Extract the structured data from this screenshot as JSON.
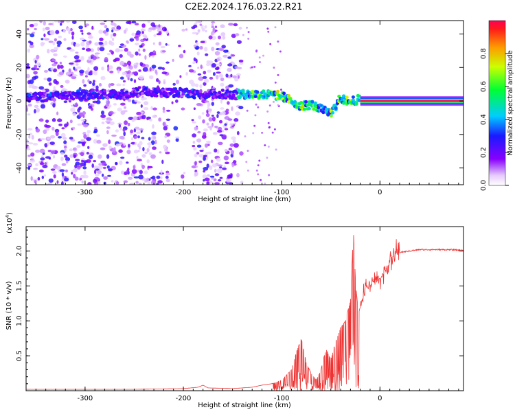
{
  "title": "C2E2.2024.176.03.22.R21",
  "chart_data": [
    {
      "type": "heatmap",
      "title": "C2E2.2024.176.03.22.R21",
      "xlabel": "Height of straight line (km)",
      "ylabel": "Frequency (Hz)",
      "xlim": [
        -360,
        85
      ],
      "ylim": [
        -50,
        48
      ],
      "xticks": [
        -300,
        -200,
        -100,
        0
      ],
      "yticks": [
        -40,
        -20,
        0,
        20,
        40
      ],
      "colorbar": {
        "label": "Normalized spectral amplitude",
        "range": [
          0,
          1
        ],
        "ticks": [
          0.0,
          0.2,
          0.4,
          0.6,
          0.8
        ],
        "tick_labels": [
          "0.0",
          "0.2",
          "0.4",
          "0.6",
          "0.8"
        ],
        "colormap": "rainbow (purple-blue-cyan-green-yellow-red)"
      },
      "ridge": {
        "x": [
          -355,
          -320,
          -290,
          -260,
          -240,
          -220,
          -200,
          -180,
          -160,
          -140,
          -120,
          -100,
          -90,
          -80,
          -70,
          -60,
          -50,
          -45,
          -40,
          -35,
          -30,
          -20,
          -10,
          0,
          10,
          30,
          60,
          85
        ],
        "y": [
          2,
          3,
          4,
          4,
          6,
          5,
          5,
          4,
          4,
          4,
          4,
          3,
          0,
          -3,
          -2,
          -5,
          -8,
          -3,
          2,
          0,
          0,
          1,
          0,
          0,
          0,
          0,
          0,
          0
        ]
      },
      "noise_region": {
        "x": [
          -360,
          -140
        ],
        "y": [
          -50,
          48
        ]
      },
      "strong_band": {
        "x": [
          -20,
          85
        ],
        "y": [
          0,
          0
        ],
        "value": 1.0
      }
    },
    {
      "type": "line",
      "xlabel": "Height of straight line (km)",
      "ylabel": "SNR (10 * v/v)",
      "multiplier": "(x10",
      "multiplier_exp": "4",
      "multiplier_close": ")",
      "xlim": [
        -360,
        85
      ],
      "ylim": [
        0,
        2.35
      ],
      "xticks": [
        -300,
        -200,
        -100,
        0
      ],
      "yticks": [
        0.5,
        1.0,
        1.5,
        2.0
      ],
      "ytick_labels": [
        "0.5",
        "1.0",
        "1.5",
        "2.0"
      ],
      "color": "#ee3333",
      "series": [
        {
          "x": [
            -360,
            -300,
            -250,
            -200,
            -185,
            -180,
            -175,
            -150,
            -130,
            -120,
            -110,
            -100,
            -90,
            -85,
            -80,
            -75,
            -70,
            -65,
            -60,
            -55,
            -50,
            -45,
            -40,
            -35,
            -30,
            -27,
            -25,
            -22,
            -20,
            -15,
            -10,
            -5,
            0,
            5,
            10,
            15,
            20,
            30,
            40,
            50,
            60,
            70,
            85
          ],
          "y": [
            0.02,
            0.02,
            0.02,
            0.03,
            0.05,
            0.08,
            0.04,
            0.03,
            0.05,
            0.08,
            0.1,
            0.15,
            0.3,
            0.55,
            0.75,
            0.4,
            0.25,
            0.15,
            0.3,
            0.6,
            0.45,
            0.7,
            0.9,
            1.0,
            1.3,
            2.3,
            1.6,
            1.1,
            1.2,
            1.5,
            1.5,
            1.6,
            1.6,
            1.7,
            1.85,
            1.95,
            1.98,
            2.0,
            2.02,
            2.02,
            2.02,
            2.02,
            2.01
          ]
        }
      ]
    }
  ]
}
